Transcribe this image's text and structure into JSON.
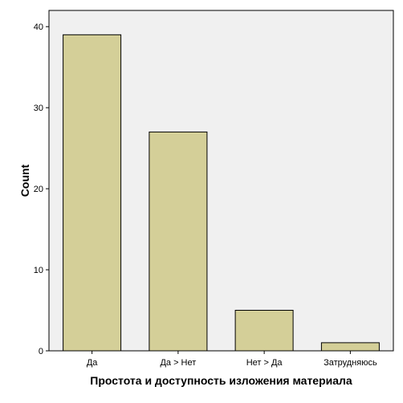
{
  "chart_data": {
    "type": "bar",
    "title": "",
    "xlabel": "Простота и доступность изложения материала",
    "ylabel": "Count",
    "categories": [
      "Да",
      "Да > Нет",
      "Нет > Да",
      "Затрудняюсь"
    ],
    "series": [
      {
        "values": [
          39,
          27,
          5,
          1
        ]
      }
    ],
    "ylim": [
      0,
      42
    ],
    "yticks": [
      0,
      10,
      20,
      30,
      40
    ],
    "grid": false,
    "legend": "none"
  },
  "colors": {
    "plot_background": "#f0f0f0",
    "bar_fill": "#d4cf98",
    "bar_stroke": "#000000",
    "axis": "#000000"
  }
}
